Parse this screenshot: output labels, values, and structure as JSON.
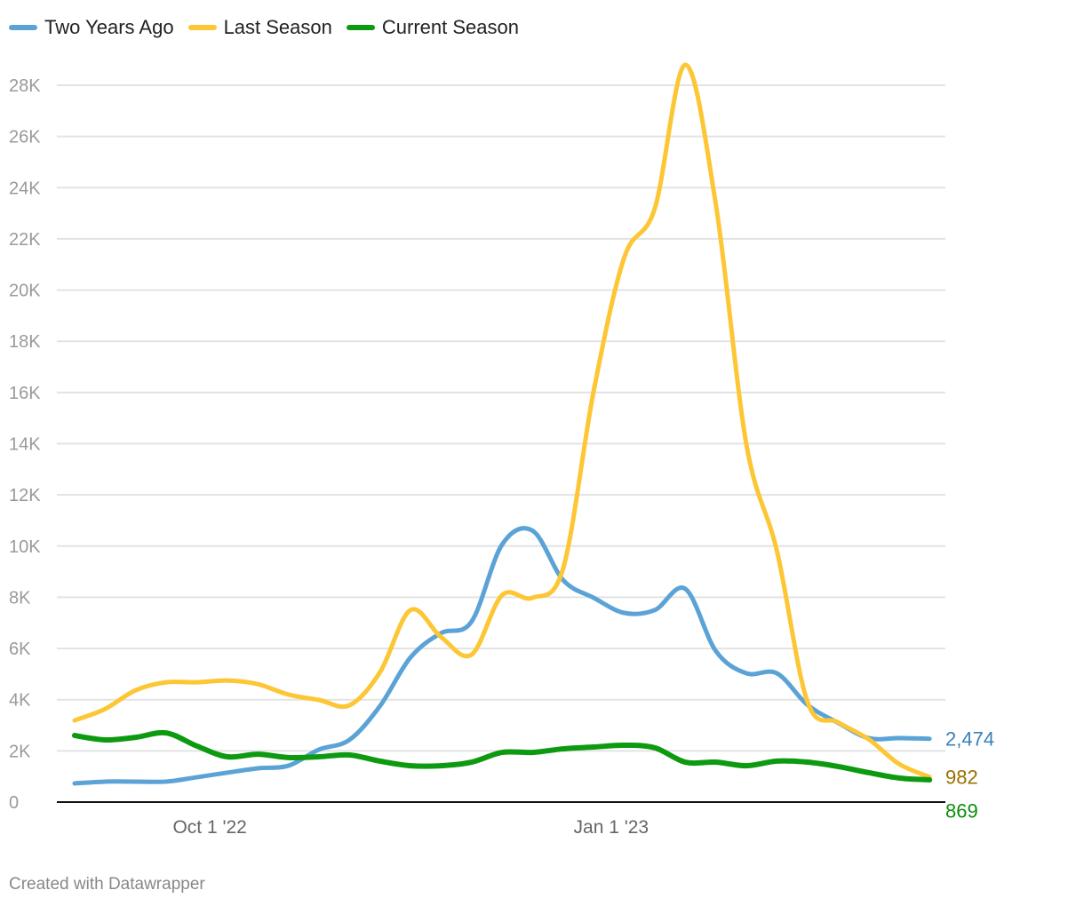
{
  "chart_data": {
    "type": "line",
    "title": "",
    "xlabel": "",
    "ylabel": "",
    "ylim": [
      0,
      28000
    ],
    "yticks": [
      0,
      2000,
      4000,
      6000,
      8000,
      10000,
      12000,
      14000,
      16000,
      18000,
      20000,
      22000,
      24000,
      26000,
      28000
    ],
    "ytick_labels": [
      "0",
      "2K",
      "4K",
      "6K",
      "8K",
      "10K",
      "12K",
      "14K",
      "16K",
      "18K",
      "20K",
      "22K",
      "24K",
      "26K",
      "28K"
    ],
    "xticks": [
      "2022-10-01",
      "2023-01-01"
    ],
    "xtick_labels": [
      "Oct 1 '22",
      "Jan 1 '23"
    ],
    "grid": "horizontal",
    "legend": "top-left",
    "x": [
      "2022-08-31",
      "2022-09-07",
      "2022-09-14",
      "2022-09-21",
      "2022-09-28",
      "2022-10-05",
      "2022-10-12",
      "2022-10-19",
      "2022-10-26",
      "2022-11-02",
      "2022-11-09",
      "2022-11-16",
      "2022-11-23",
      "2022-11-30",
      "2022-12-07",
      "2022-12-14",
      "2022-12-21",
      "2022-12-28",
      "2023-01-04",
      "2023-01-11",
      "2023-01-18",
      "2023-01-25",
      "2023-02-01",
      "2023-02-08",
      "2023-02-15",
      "2023-02-22",
      "2023-03-01",
      "2023-03-08",
      "2023-03-15"
    ],
    "series": [
      {
        "name": "Two Years Ago",
        "color": "#5ba3d6",
        "label_color": "#3a80b8",
        "end_label": "2,474",
        "values": [
          730,
          800,
          800,
          800,
          970,
          1150,
          1320,
          1420,
          2050,
          2430,
          3750,
          5650,
          6600,
          7050,
          10060,
          10600,
          8670,
          7980,
          7390,
          7500,
          8330,
          5900,
          5030,
          5030,
          3800,
          3100,
          2500,
          2500,
          2474
        ]
      },
      {
        "name": "Last Season",
        "color": "#fcc634",
        "label_color": "#9a7000",
        "end_label": "982",
        "values": [
          3190,
          3640,
          4370,
          4680,
          4680,
          4750,
          4610,
          4200,
          3990,
          3780,
          5070,
          7500,
          6450,
          5760,
          8080,
          7980,
          9130,
          16060,
          21270,
          23180,
          28800,
          23350,
          13980,
          9820,
          3920,
          3120,
          2460,
          1490,
          982
        ]
      },
      {
        "name": "Current Season",
        "color": "#0d9a10",
        "label_color": "#0d8f0d",
        "end_label": "869",
        "values": [
          2600,
          2430,
          2530,
          2700,
          2190,
          1770,
          1870,
          1740,
          1770,
          1840,
          1600,
          1420,
          1420,
          1560,
          1940,
          1940,
          2080,
          2150,
          2220,
          2120,
          1560,
          1560,
          1420,
          1600,
          1560,
          1390,
          1150,
          940,
          869
        ]
      }
    ]
  },
  "footer": "Created with Datawrapper"
}
